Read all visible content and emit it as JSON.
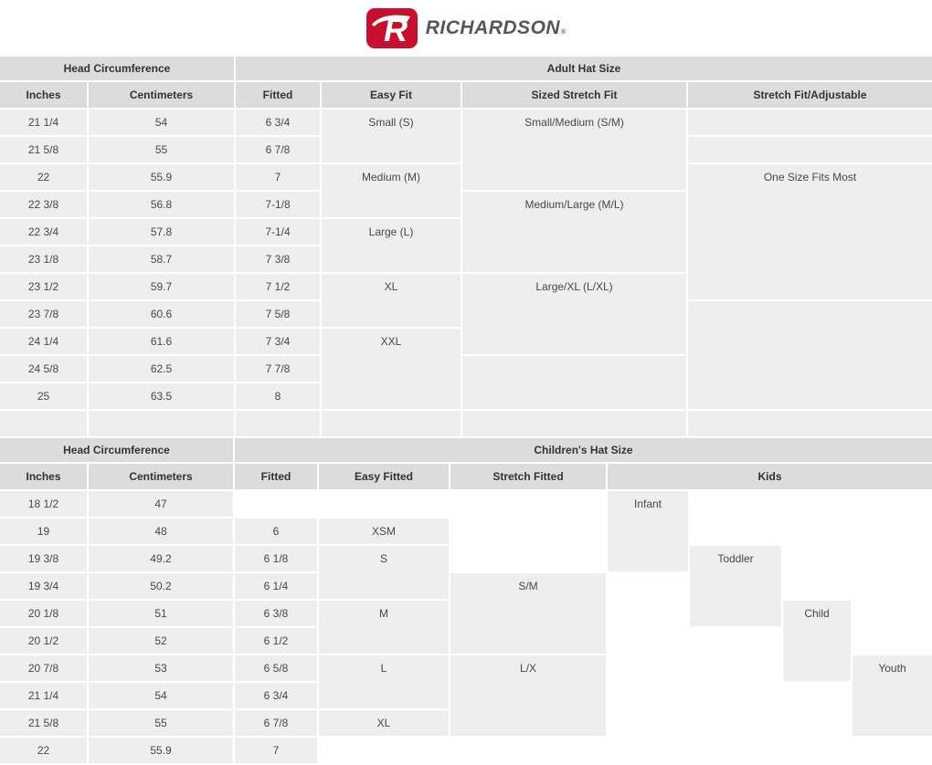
{
  "brand": {
    "monogram": "R",
    "wordmark": "RICHARDSON",
    "mark": "®"
  },
  "colors": {
    "brand_red": "#c8102e",
    "wordmark_gray": "#54565a",
    "header_bg": "#dcdcdc",
    "cell_bg": "#eeeeee",
    "header_text": "#333333",
    "cell_text": "#474747"
  },
  "tables": [
    {
      "title": "Adult Hat Size",
      "cells": [
        {
          "col": 1,
          "row": 1,
          "colspan": 2,
          "kind": "group",
          "text": "Head Circumference"
        },
        {
          "col": 3,
          "row": 1,
          "colspan": 4,
          "kind": "group",
          "text": "Adult Hat Size"
        },
        {
          "col": 1,
          "row": 2,
          "kind": "header",
          "text": "Inches"
        },
        {
          "col": 2,
          "row": 2,
          "kind": "header",
          "text": "Centimeters"
        },
        {
          "col": 3,
          "row": 2,
          "kind": "header",
          "text": "Fitted"
        },
        {
          "col": 4,
          "row": 2,
          "kind": "header",
          "text": "Easy Fit"
        },
        {
          "col": 5,
          "row": 2,
          "kind": "header",
          "text": "Sized Stretch Fit"
        },
        {
          "col": 6,
          "row": 2,
          "kind": "header",
          "text": "Stretch Fit/Adjustable"
        },
        {
          "col": 1,
          "row": 3,
          "text": "21 1/4"
        },
        {
          "col": 1,
          "row": 4,
          "text": "21 5/8"
        },
        {
          "col": 1,
          "row": 5,
          "text": "22"
        },
        {
          "col": 1,
          "row": 6,
          "text": "22 3/8"
        },
        {
          "col": 1,
          "row": 7,
          "text": "22 3/4"
        },
        {
          "col": 1,
          "row": 8,
          "text": "23 1/8"
        },
        {
          "col": 1,
          "row": 9,
          "text": "23 1/2"
        },
        {
          "col": 1,
          "row": 10,
          "text": "23 7/8"
        },
        {
          "col": 1,
          "row": 11,
          "text": "24 1/4"
        },
        {
          "col": 1,
          "row": 12,
          "text": "24 5/8"
        },
        {
          "col": 1,
          "row": 13,
          "text": "25"
        },
        {
          "col": 1,
          "row": 14,
          "text": ""
        },
        {
          "col": 2,
          "row": 3,
          "text": "54"
        },
        {
          "col": 2,
          "row": 4,
          "text": "55"
        },
        {
          "col": 2,
          "row": 5,
          "text": "55.9"
        },
        {
          "col": 2,
          "row": 6,
          "text": "56.8"
        },
        {
          "col": 2,
          "row": 7,
          "text": "57.8"
        },
        {
          "col": 2,
          "row": 8,
          "text": "58.7"
        },
        {
          "col": 2,
          "row": 9,
          "text": "59.7"
        },
        {
          "col": 2,
          "row": 10,
          "text": "60.6"
        },
        {
          "col": 2,
          "row": 11,
          "text": "61.6"
        },
        {
          "col": 2,
          "row": 12,
          "text": "62.5"
        },
        {
          "col": 2,
          "row": 13,
          "text": "63.5"
        },
        {
          "col": 2,
          "row": 14,
          "text": ""
        },
        {
          "col": 3,
          "row": 3,
          "text": "6 3/4"
        },
        {
          "col": 3,
          "row": 4,
          "text": "6 7/8"
        },
        {
          "col": 3,
          "row": 5,
          "text": "7"
        },
        {
          "col": 3,
          "row": 6,
          "text": "7-1/8"
        },
        {
          "col": 3,
          "row": 7,
          "text": "7-1/4"
        },
        {
          "col": 3,
          "row": 8,
          "text": "7 3/8"
        },
        {
          "col": 3,
          "row": 9,
          "text": "7 1/2"
        },
        {
          "col": 3,
          "row": 10,
          "text": "7 5/8"
        },
        {
          "col": 3,
          "row": 11,
          "text": "7 3/4"
        },
        {
          "col": 3,
          "row": 12,
          "text": "7 7/8"
        },
        {
          "col": 3,
          "row": 13,
          "text": "8"
        },
        {
          "col": 3,
          "row": 14,
          "text": ""
        },
        {
          "col": 4,
          "row": 3,
          "rowspan": 2,
          "text": "Small (S)"
        },
        {
          "col": 4,
          "row": 5,
          "rowspan": 2,
          "text": "Medium (M)"
        },
        {
          "col": 4,
          "row": 7,
          "rowspan": 2,
          "text": "Large (L)"
        },
        {
          "col": 4,
          "row": 9,
          "rowspan": 2,
          "text": "XL"
        },
        {
          "col": 4,
          "row": 11,
          "rowspan": 3,
          "text": "XXL"
        },
        {
          "col": 4,
          "row": 14,
          "text": ""
        },
        {
          "col": 5,
          "row": 3,
          "rowspan": 3,
          "text": "Small/Medium (S/M)"
        },
        {
          "col": 5,
          "row": 6,
          "rowspan": 3,
          "text": "Medium/Large (M/L)"
        },
        {
          "col": 5,
          "row": 9,
          "rowspan": 3,
          "text": "Large/XL (L/XL)"
        },
        {
          "col": 5,
          "row": 12,
          "rowspan": 2,
          "text": ""
        },
        {
          "col": 5,
          "row": 14,
          "text": ""
        },
        {
          "col": 6,
          "row": 3,
          "text": ""
        },
        {
          "col": 6,
          "row": 4,
          "text": ""
        },
        {
          "col": 6,
          "row": 5,
          "rowspan": 5,
          "text": "One Size Fits Most"
        },
        {
          "col": 6,
          "row": 10,
          "rowspan": 4,
          "text": ""
        },
        {
          "col": 6,
          "row": 14,
          "text": ""
        }
      ]
    },
    {
      "title": "Children's Hat Size",
      "cells": [
        {
          "col": 1,
          "row": 1,
          "colspan": 2,
          "kind": "group",
          "text": "Head Circumference"
        },
        {
          "col": 3,
          "row": 1,
          "colspan": 7,
          "kind": "group",
          "text": "Children's Hat Size"
        },
        {
          "col": 1,
          "row": 2,
          "kind": "header",
          "text": "Inches"
        },
        {
          "col": 2,
          "row": 2,
          "kind": "header",
          "text": "Centimeters"
        },
        {
          "col": 3,
          "row": 2,
          "kind": "header",
          "text": "Fitted"
        },
        {
          "col": 4,
          "row": 2,
          "kind": "header",
          "text": "Easy Fitted"
        },
        {
          "col": 5,
          "row": 2,
          "kind": "header",
          "text": "Stretch Fitted"
        },
        {
          "col": 6,
          "row": 2,
          "colspan": 4,
          "kind": "header",
          "text": "Kids"
        },
        {
          "col": 1,
          "row": 3,
          "text": "18 1/2"
        },
        {
          "col": 1,
          "row": 4,
          "text": "19"
        },
        {
          "col": 1,
          "row": 5,
          "text": "19 3/8"
        },
        {
          "col": 1,
          "row": 6,
          "text": "19 3/4"
        },
        {
          "col": 1,
          "row": 7,
          "text": "20 1/8"
        },
        {
          "col": 1,
          "row": 8,
          "text": "20 1/2"
        },
        {
          "col": 1,
          "row": 9,
          "text": "20 7/8"
        },
        {
          "col": 1,
          "row": 10,
          "text": "21 1/4"
        },
        {
          "col": 1,
          "row": 11,
          "text": "21 5/8"
        },
        {
          "col": 1,
          "row": 12,
          "text": "22"
        },
        {
          "col": 2,
          "row": 3,
          "text": "47"
        },
        {
          "col": 2,
          "row": 4,
          "text": "48"
        },
        {
          "col": 2,
          "row": 5,
          "text": "49.2"
        },
        {
          "col": 2,
          "row": 6,
          "text": "50.2"
        },
        {
          "col": 2,
          "row": 7,
          "text": "51"
        },
        {
          "col": 2,
          "row": 8,
          "text": "52"
        },
        {
          "col": 2,
          "row": 9,
          "text": "53"
        },
        {
          "col": 2,
          "row": 10,
          "text": "54"
        },
        {
          "col": 2,
          "row": 11,
          "text": "55"
        },
        {
          "col": 2,
          "row": 12,
          "text": "55.9"
        },
        {
          "col": 3,
          "row": 4,
          "text": "6"
        },
        {
          "col": 3,
          "row": 5,
          "text": "6 1/8"
        },
        {
          "col": 3,
          "row": 6,
          "text": "6 1/4"
        },
        {
          "col": 3,
          "row": 7,
          "text": "6 3/8"
        },
        {
          "col": 3,
          "row": 8,
          "text": "6 1/2"
        },
        {
          "col": 3,
          "row": 9,
          "text": "6 5/8"
        },
        {
          "col": 3,
          "row": 10,
          "text": "6 3/4"
        },
        {
          "col": 3,
          "row": 11,
          "text": "6 7/8"
        },
        {
          "col": 3,
          "row": 12,
          "text": "7"
        },
        {
          "col": 4,
          "row": 4,
          "text": "XSM"
        },
        {
          "col": 4,
          "row": 5,
          "rowspan": 2,
          "text": "S"
        },
        {
          "col": 4,
          "row": 7,
          "rowspan": 2,
          "text": "M"
        },
        {
          "col": 4,
          "row": 9,
          "rowspan": 2,
          "text": "L"
        },
        {
          "col": 4,
          "row": 11,
          "text": "XL"
        },
        {
          "col": 5,
          "row": 6,
          "rowspan": 3,
          "text": "S/M"
        },
        {
          "col": 5,
          "row": 9,
          "rowspan": 3,
          "text": "L/X"
        },
        {
          "col": 6,
          "row": 3,
          "rowspan": 3,
          "text": "Infant"
        },
        {
          "col": 7,
          "row": 5,
          "rowspan": 3,
          "text": "Toddler"
        },
        {
          "col": 8,
          "row": 7,
          "rowspan": 3,
          "text": "Child"
        },
        {
          "col": 9,
          "row": 9,
          "rowspan": 3,
          "text": "Youth"
        }
      ]
    }
  ]
}
